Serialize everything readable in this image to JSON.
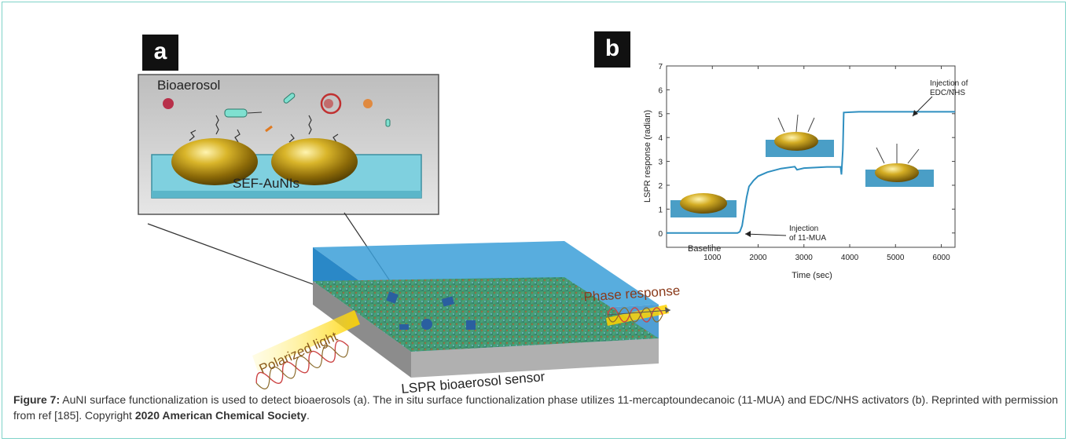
{
  "panel_a": {
    "tag": "a",
    "bioaerosol_label": "Bioaerosol",
    "substrate_label": "SEF-AuNIs",
    "sensor_label": "LSPR bioaerosol  sensor",
    "light_label": "Polarized light",
    "response_label": "Phase response"
  },
  "panel_b": {
    "tag": "b",
    "annotations": {
      "baseline": "Baseline",
      "inj_mua_1": "Injection",
      "inj_mua_2": "of 11-MUA",
      "inj_edc_1": "Injection of",
      "inj_edc_2": "EDC/NHS"
    }
  },
  "chart_data": {
    "type": "line",
    "title": "",
    "xlabel": "Time (sec)",
    "ylabel": "LSPR response (radian)",
    "xlim": [
      0,
      6300
    ],
    "ylim": [
      -0.6,
      7
    ],
    "xticks": [
      1000,
      2000,
      3000,
      4000,
      5000,
      6000
    ],
    "yticks": [
      0,
      1,
      2,
      3,
      4,
      5,
      6,
      7
    ],
    "grid": false,
    "series": [
      {
        "color": "#2f8fc0",
        "points": [
          [
            0,
            0
          ],
          [
            1550,
            0
          ],
          [
            1600,
            0.05
          ],
          [
            1650,
            0.3
          ],
          [
            1700,
            0.9
          ],
          [
            1750,
            1.5
          ],
          [
            1800,
            1.95
          ],
          [
            1900,
            2.2
          ],
          [
            2000,
            2.38
          ],
          [
            2200,
            2.55
          ],
          [
            2500,
            2.7
          ],
          [
            2800,
            2.78
          ],
          [
            2850,
            2.65
          ],
          [
            3000,
            2.72
          ],
          [
            3500,
            2.77
          ],
          [
            3800,
            2.77
          ],
          [
            3820,
            2.45
          ],
          [
            3850,
            3.5
          ],
          [
            3870,
            5.05
          ],
          [
            4200,
            5.08
          ],
          [
            6300,
            5.08
          ]
        ]
      }
    ]
  },
  "caption": {
    "label": "Figure 7:",
    "text": " AuNI surface functionalization is used to detect bioaerosols (a). The in situ surface functionalization phase utilizes 11-mercaptoundecanoic (11-MUA) and EDC/NHS activators (b). Reprinted with permission from ref [185]. Copyright ",
    "copyright_holder": "2020 American Chemical Society",
    "end": "."
  }
}
